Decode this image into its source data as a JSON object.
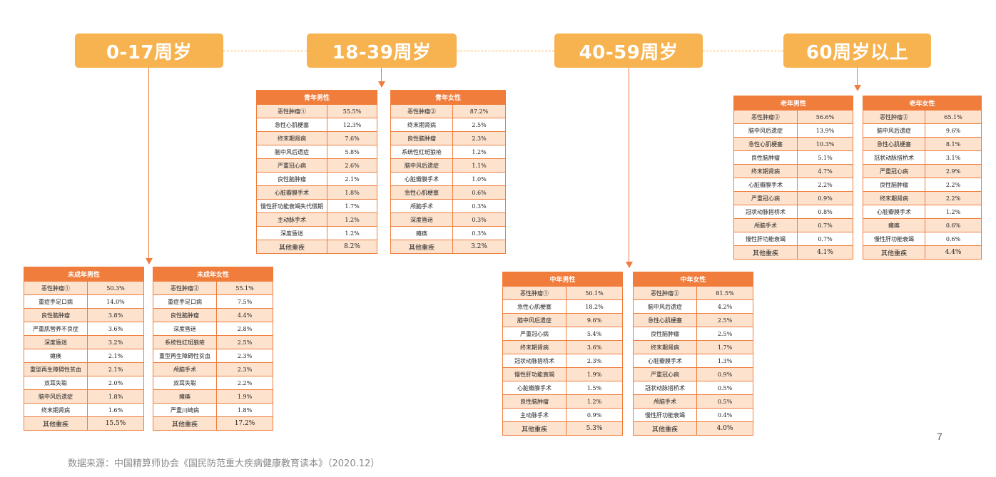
{
  "age_groups": [
    "0-17周岁",
    "18-39周岁",
    "40-59周岁",
    "60周岁以上"
  ],
  "tables": {
    "youth_male": {
      "title": "青年男性",
      "rows": [
        [
          "恶性肿瘤①",
          "55.5%"
        ],
        [
          "急性心肌梗塞",
          "12.3%"
        ],
        [
          "终末期肾病",
          "7.6%"
        ],
        [
          "脑中风后遗症",
          "5.8%"
        ],
        [
          "严重冠心病",
          "2.6%"
        ],
        [
          "良性脑肿瘤",
          "2.1%"
        ],
        [
          "心脏瓣膜手术",
          "1.8%"
        ],
        [
          "慢性肝功能衰竭失代偿期",
          "1.7%"
        ],
        [
          "主动脉手术",
          "1.2%"
        ],
        [
          "深度昏迷",
          "1.2%"
        ],
        [
          "其他重疾",
          "8.2%"
        ]
      ]
    },
    "youth_female": {
      "title": "青年女性",
      "rows": [
        [
          "恶性肿瘤②",
          "87.2%"
        ],
        [
          "终末期肾病",
          "2.5%"
        ],
        [
          "良性脑肿瘤",
          "2.3%"
        ],
        [
          "系统性红斑狼疮",
          "1.2%"
        ],
        [
          "脑中风后遗症",
          "1.1%"
        ],
        [
          "心脏瓣膜手术",
          "1.0%"
        ],
        [
          "急性心肌梗塞",
          "0.6%"
        ],
        [
          "颅脑手术",
          "0.3%"
        ],
        [
          "深度昏迷",
          "0.3%"
        ],
        [
          "瘫痪",
          "0.3%"
        ],
        [
          "其他重疾",
          "3.2%"
        ]
      ]
    },
    "minor_male": {
      "title": "未成年男性",
      "rows": [
        [
          "恶性肿瘤①",
          "50.3%"
        ],
        [
          "重症手足口病",
          "14.0%"
        ],
        [
          "良性脑肿瘤",
          "3.8%"
        ],
        [
          "严重肌营养不良症",
          "3.6%"
        ],
        [
          "深度昏迷",
          "3.2%"
        ],
        [
          "瘫痪",
          "2.1%"
        ],
        [
          "重型再生障碍性贫血",
          "2.1%"
        ],
        [
          "双耳失聪",
          "2.0%"
        ],
        [
          "脑中风后遗症",
          "1.8%"
        ],
        [
          "终末期肾病",
          "1.6%"
        ],
        [
          "其他重疾",
          "15.5%"
        ]
      ]
    },
    "minor_female": {
      "title": "未成年女性",
      "rows": [
        [
          "恶性肿瘤②",
          "55.1%"
        ],
        [
          "重症手足口病",
          "7.5%"
        ],
        [
          "良性脑肿瘤",
          "4.4%"
        ],
        [
          "深度昏迷",
          "2.8%"
        ],
        [
          "系统性红斑狼疮",
          "2.5%"
        ],
        [
          "重型再生障碍性贫血",
          "2.3%"
        ],
        [
          "颅脑手术",
          "2.3%"
        ],
        [
          "双耳失聪",
          "2.2%"
        ],
        [
          "瘫痪",
          "1.9%"
        ],
        [
          "严重川崎病",
          "1.8%"
        ],
        [
          "其他重疾",
          "17.2%"
        ]
      ]
    },
    "middle_male": {
      "title": "中年男性",
      "rows": [
        [
          "恶性肿瘤①",
          "50.1%"
        ],
        [
          "急性心肌梗塞",
          "18.2%"
        ],
        [
          "脑中风后遗症",
          "9.6%"
        ],
        [
          "严重冠心病",
          "5.4%"
        ],
        [
          "终末期肾病",
          "3.6%"
        ],
        [
          "冠状动脉搭桥术",
          "2.3%"
        ],
        [
          "慢性肝功能衰竭",
          "1.9%"
        ],
        [
          "心脏瓣膜手术",
          "1.5%"
        ],
        [
          "良性脑肿瘤",
          "1.2%"
        ],
        [
          "主动脉手术",
          "0.9%"
        ],
        [
          "其他重疾",
          "5.3%"
        ]
      ]
    },
    "middle_female": {
      "title": "中年女性",
      "rows": [
        [
          "恶性肿瘤②",
          "81.5%"
        ],
        [
          "脑中风后遗症",
          "4.2%"
        ],
        [
          "急性心肌梗塞",
          "2.5%"
        ],
        [
          "良性脑肿瘤",
          "2.5%"
        ],
        [
          "终末期肾病",
          "1.7%"
        ],
        [
          "心脏瓣膜手术",
          "1.3%"
        ],
        [
          "严重冠心病",
          "0.9%"
        ],
        [
          "冠状动脉搭桥术",
          "0.5%"
        ],
        [
          "颅脑手术",
          "0.5%"
        ],
        [
          "慢性肝功能衰竭",
          "0.4%"
        ],
        [
          "其他重疾",
          "4.0%"
        ]
      ]
    },
    "elder_male": {
      "title": "老年男性",
      "rows": [
        [
          "恶性肿瘤②",
          "56.6%"
        ],
        [
          "脑中风后遗症",
          "13.9%"
        ],
        [
          "急性心肌梗塞",
          "10.3%"
        ],
        [
          "良性脑肿瘤",
          "5.1%"
        ],
        [
          "终末期肾病",
          "4.7%"
        ],
        [
          "心脏瓣膜手术",
          "2.2%"
        ],
        [
          "严重冠心病",
          "0.9%"
        ],
        [
          "冠状动脉搭桥术",
          "0.8%"
        ],
        [
          "颅脑手术",
          "0.7%"
        ],
        [
          "慢性肝功能衰竭",
          "0.7%"
        ],
        [
          "其他重疾",
          "4.1%"
        ]
      ]
    },
    "elder_female": {
      "title": "老年女性",
      "rows": [
        [
          "恶性肿瘤②",
          "65.1%"
        ],
        [
          "脑中风后遗症",
          "9.6%"
        ],
        [
          "急性心肌梗塞",
          "8.1%"
        ],
        [
          "冠状动脉搭桥术",
          "3.1%"
        ],
        [
          "严重冠心病",
          "2.9%"
        ],
        [
          "良性脑肿瘤",
          "2.2%"
        ],
        [
          "终末期肾病",
          "2.2%"
        ],
        [
          "心脏瓣膜手术",
          "1.2%"
        ],
        [
          "瘫痪",
          "0.6%"
        ],
        [
          "慢性肝功能衰竭",
          "0.6%"
        ],
        [
          "其他重疾",
          "4.4%"
        ]
      ]
    }
  },
  "page_number": "7",
  "source": "数据来源：中国精算师协会《国民防范重大疾病健康教育读本》（2020.12）",
  "colors": {
    "age_box": "#f6b34f",
    "table_header": "#f07d3c",
    "row_fill": "#fde2cd"
  }
}
